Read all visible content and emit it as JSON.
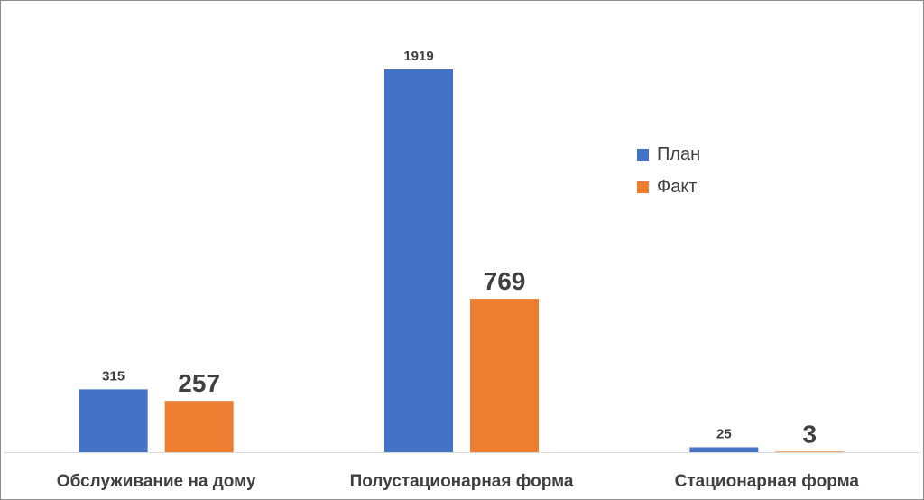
{
  "chart_data": {
    "type": "bar",
    "categories": [
      "Обслуживание на дому",
      "Полустационарная форма",
      "Стационарная форма"
    ],
    "series": [
      {
        "name": "План",
        "values": [
          315,
          1919,
          25
        ],
        "color": "#4472C4"
      },
      {
        "name": "Факт",
        "values": [
          257,
          769,
          3
        ],
        "color": "#ED7D31"
      }
    ],
    "ylim": [
      0,
      2000
    ],
    "grid": false,
    "legend_position": "right",
    "title": "",
    "xlabel": "",
    "ylabel": ""
  }
}
